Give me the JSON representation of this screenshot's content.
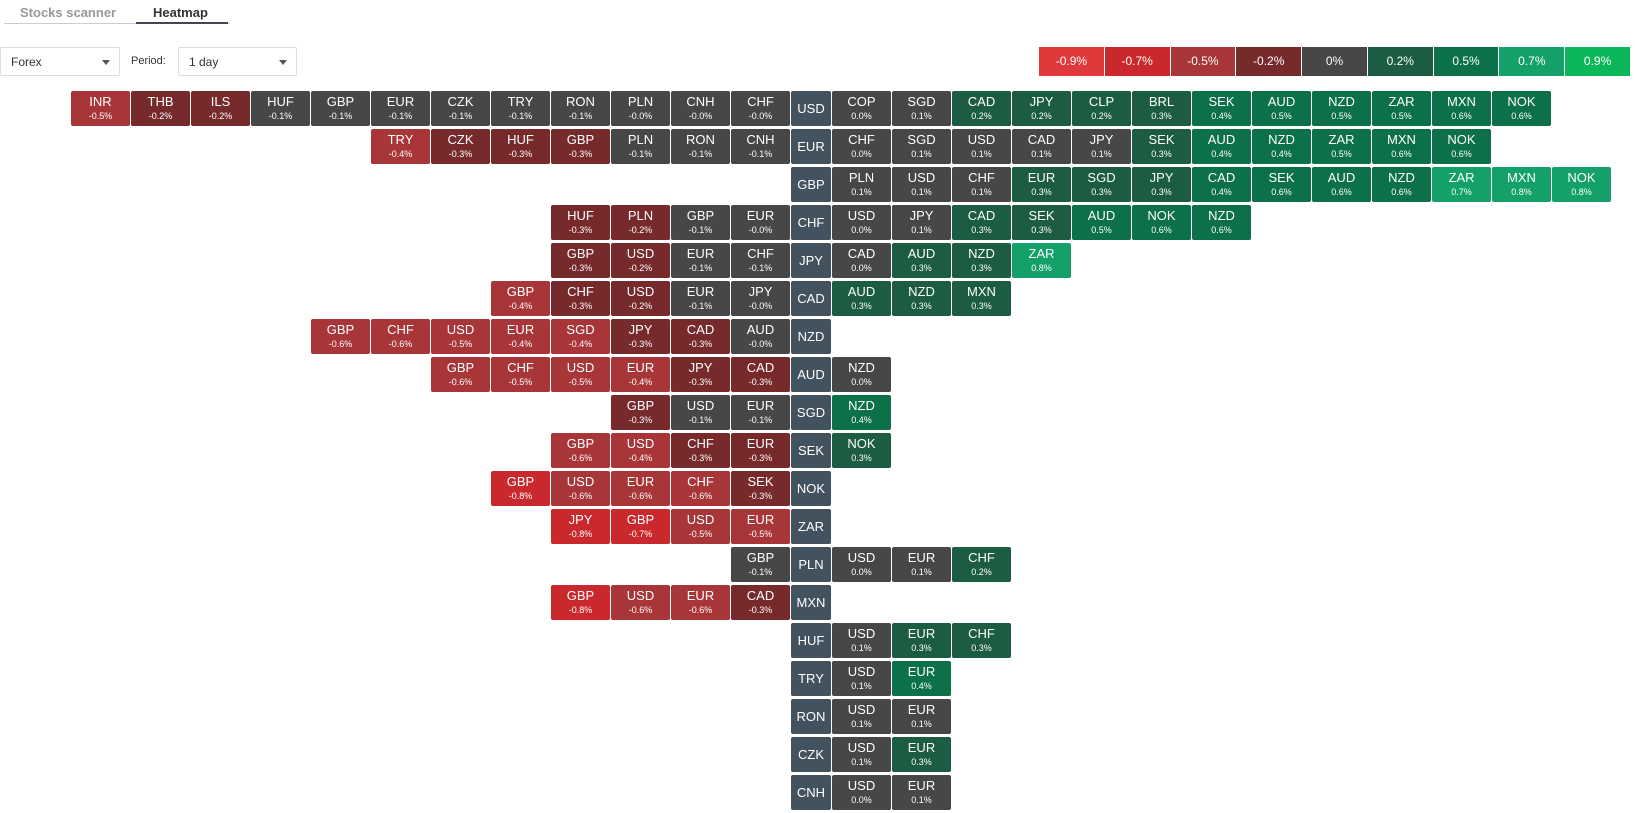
{
  "header": {
    "tabs": [
      "Stocks scanner",
      "Heatmap"
    ]
  },
  "filters": {
    "market": "Forex",
    "period_label": "Period:",
    "period": "1 day"
  },
  "legend": [
    {
      "value": -0.9,
      "label": "-0.9%",
      "color": "#e0393b"
    },
    {
      "value": -0.7,
      "label": "-0.7%",
      "color": "#c9292c"
    },
    {
      "value": -0.5,
      "label": "-0.5%",
      "color": "#a83639"
    },
    {
      "value": -0.2,
      "label": "-0.2%",
      "color": "#772a2c"
    },
    {
      "value": 0,
      "label": "0%",
      "color": "#474747"
    },
    {
      "value": 0.2,
      "label": "0.2%",
      "color": "#1c5c43"
    },
    {
      "value": 0.5,
      "label": "0.5%",
      "color": "#0c7048"
    },
    {
      "value": 0.7,
      "label": "0.7%",
      "color": "#14a069"
    },
    {
      "value": 0.9,
      "label": "0.9%",
      "color": "#0cb75a"
    }
  ],
  "rows": [
    {
      "base": "USD",
      "left": [
        [
          "INR",
          -0.5,
          "-0.5%"
        ],
        [
          "THB",
          -0.2,
          "-0.2%"
        ],
        [
          "ILS",
          -0.2,
          "-0.2%"
        ],
        [
          "HUF",
          -0.1,
          "-0.1%"
        ],
        [
          "GBP",
          -0.1,
          "-0.1%"
        ],
        [
          "EUR",
          -0.1,
          "-0.1%"
        ],
        [
          "CZK",
          -0.1,
          "-0.1%"
        ],
        [
          "TRY",
          -0.1,
          "-0.1%"
        ],
        [
          "RON",
          -0.1,
          "-0.1%"
        ],
        [
          "PLN",
          0,
          "-0.0%"
        ],
        [
          "CNH",
          0,
          "-0.0%"
        ],
        [
          "CHF",
          0,
          "-0.0%"
        ]
      ],
      "right": [
        [
          "COP",
          0,
          "0.0%"
        ],
        [
          "SGD",
          0.1,
          "0.1%"
        ],
        [
          "CAD",
          0.2,
          "0.2%"
        ],
        [
          "JPY",
          0.2,
          "0.2%"
        ],
        [
          "CLP",
          0.2,
          "0.2%"
        ],
        [
          "BRL",
          0.3,
          "0.3%"
        ],
        [
          "SEK",
          0.4,
          "0.4%"
        ],
        [
          "AUD",
          0.5,
          "0.5%"
        ],
        [
          "NZD",
          0.5,
          "0.5%"
        ],
        [
          "ZAR",
          0.5,
          "0.5%"
        ],
        [
          "MXN",
          0.6,
          "0.6%"
        ],
        [
          "NOK",
          0.6,
          "0.6%"
        ]
      ]
    },
    {
      "base": "EUR",
      "left": [
        [
          "TRY",
          -0.4,
          "-0.4%"
        ],
        [
          "CZK",
          -0.3,
          "-0.3%"
        ],
        [
          "HUF",
          -0.3,
          "-0.3%"
        ],
        [
          "GBP",
          -0.3,
          "-0.3%"
        ],
        [
          "PLN",
          -0.1,
          "-0.1%"
        ],
        [
          "RON",
          -0.1,
          "-0.1%"
        ],
        [
          "CNH",
          -0.1,
          "-0.1%"
        ]
      ],
      "right": [
        [
          "CHF",
          0,
          "0.0%"
        ],
        [
          "SGD",
          0.1,
          "0.1%"
        ],
        [
          "USD",
          0.1,
          "0.1%"
        ],
        [
          "CAD",
          0.1,
          "0.1%"
        ],
        [
          "JPY",
          0.1,
          "0.1%"
        ],
        [
          "SEK",
          0.3,
          "0.3%"
        ],
        [
          "AUD",
          0.4,
          "0.4%"
        ],
        [
          "NZD",
          0.4,
          "0.4%"
        ],
        [
          "ZAR",
          0.5,
          "0.5%"
        ],
        [
          "MXN",
          0.6,
          "0.6%"
        ],
        [
          "NOK",
          0.6,
          "0.6%"
        ]
      ]
    },
    {
      "base": "GBP",
      "left": [],
      "right": [
        [
          "PLN",
          0.1,
          "0.1%"
        ],
        [
          "USD",
          0.1,
          "0.1%"
        ],
        [
          "CHF",
          0.1,
          "0.1%"
        ],
        [
          "EUR",
          0.3,
          "0.3%"
        ],
        [
          "SGD",
          0.3,
          "0.3%"
        ],
        [
          "JPY",
          0.3,
          "0.3%"
        ],
        [
          "CAD",
          0.4,
          "0.4%"
        ],
        [
          "SEK",
          0.6,
          "0.6%"
        ],
        [
          "AUD",
          0.6,
          "0.6%"
        ],
        [
          "NZD",
          0.6,
          "0.6%"
        ],
        [
          "ZAR",
          0.7,
          "0.7%"
        ],
        [
          "MXN",
          0.8,
          "0.8%"
        ],
        [
          "NOK",
          0.8,
          "0.8%"
        ]
      ]
    },
    {
      "base": "CHF",
      "left": [
        [
          "HUF",
          -0.3,
          "-0.3%"
        ],
        [
          "PLN",
          -0.2,
          "-0.2%"
        ],
        [
          "GBP",
          -0.1,
          "-0.1%"
        ],
        [
          "EUR",
          0,
          "-0.0%"
        ]
      ],
      "right": [
        [
          "USD",
          0,
          "0.0%"
        ],
        [
          "JPY",
          0.1,
          "0.1%"
        ],
        [
          "CAD",
          0.3,
          "0.3%"
        ],
        [
          "SEK",
          0.3,
          "0.3%"
        ],
        [
          "AUD",
          0.5,
          "0.5%"
        ],
        [
          "NOK",
          0.6,
          "0.6%"
        ],
        [
          "NZD",
          0.6,
          "0.6%"
        ]
      ]
    },
    {
      "base": "JPY",
      "left": [
        [
          "GBP",
          -0.3,
          "-0.3%"
        ],
        [
          "USD",
          -0.2,
          "-0.2%"
        ],
        [
          "EUR",
          -0.1,
          "-0.1%"
        ],
        [
          "CHF",
          -0.1,
          "-0.1%"
        ]
      ],
      "right": [
        [
          "CAD",
          0,
          "0.0%"
        ],
        [
          "AUD",
          0.3,
          "0.3%"
        ],
        [
          "NZD",
          0.3,
          "0.3%"
        ],
        [
          "ZAR",
          0.8,
          "0.8%"
        ]
      ]
    },
    {
      "base": "CAD",
      "left": [
        [
          "GBP",
          -0.4,
          "-0.4%"
        ],
        [
          "CHF",
          -0.3,
          "-0.3%"
        ],
        [
          "USD",
          -0.2,
          "-0.2%"
        ],
        [
          "EUR",
          -0.1,
          "-0.1%"
        ],
        [
          "JPY",
          0,
          "-0.0%"
        ]
      ],
      "right": [
        [
          "AUD",
          0.3,
          "0.3%"
        ],
        [
          "NZD",
          0.3,
          "0.3%"
        ],
        [
          "MXN",
          0.3,
          "0.3%"
        ]
      ]
    },
    {
      "base": "NZD",
      "left": [
        [
          "GBP",
          -0.6,
          "-0.6%"
        ],
        [
          "CHF",
          -0.6,
          "-0.6%"
        ],
        [
          "USD",
          -0.5,
          "-0.5%"
        ],
        [
          "EUR",
          -0.4,
          "-0.4%"
        ],
        [
          "SGD",
          -0.4,
          "-0.4%"
        ],
        [
          "JPY",
          -0.3,
          "-0.3%"
        ],
        [
          "CAD",
          -0.3,
          "-0.3%"
        ],
        [
          "AUD",
          0,
          "-0.0%"
        ]
      ],
      "right": []
    },
    {
      "base": "AUD",
      "left": [
        [
          "GBP",
          -0.6,
          "-0.6%"
        ],
        [
          "CHF",
          -0.5,
          "-0.5%"
        ],
        [
          "USD",
          -0.5,
          "-0.5%"
        ],
        [
          "EUR",
          -0.4,
          "-0.4%"
        ],
        [
          "JPY",
          -0.3,
          "-0.3%"
        ],
        [
          "CAD",
          -0.3,
          "-0.3%"
        ]
      ],
      "right": [
        [
          "NZD",
          0,
          "0.0%"
        ]
      ]
    },
    {
      "base": "SGD",
      "left": [
        [
          "GBP",
          -0.3,
          "-0.3%"
        ],
        [
          "USD",
          -0.1,
          "-0.1%"
        ],
        [
          "EUR",
          -0.1,
          "-0.1%"
        ]
      ],
      "right": [
        [
          "NZD",
          0.4,
          "0.4%"
        ]
      ]
    },
    {
      "base": "SEK",
      "left": [
        [
          "GBP",
          -0.6,
          "-0.6%"
        ],
        [
          "USD",
          -0.4,
          "-0.4%"
        ],
        [
          "CHF",
          -0.3,
          "-0.3%"
        ],
        [
          "EUR",
          -0.3,
          "-0.3%"
        ]
      ],
      "right": [
        [
          "NOK",
          0.3,
          "0.3%"
        ]
      ]
    },
    {
      "base": "NOK",
      "left": [
        [
          "GBP",
          -0.8,
          "-0.8%"
        ],
        [
          "USD",
          -0.6,
          "-0.6%"
        ],
        [
          "EUR",
          -0.6,
          "-0.6%"
        ],
        [
          "CHF",
          -0.6,
          "-0.6%"
        ],
        [
          "SEK",
          -0.3,
          "-0.3%"
        ]
      ],
      "right": []
    },
    {
      "base": "ZAR",
      "left": [
        [
          "JPY",
          -0.8,
          "-0.8%"
        ],
        [
          "GBP",
          -0.7,
          "-0.7%"
        ],
        [
          "USD",
          -0.5,
          "-0.5%"
        ],
        [
          "EUR",
          -0.5,
          "-0.5%"
        ]
      ],
      "right": []
    },
    {
      "base": "PLN",
      "left": [
        [
          "GBP",
          -0.1,
          "-0.1%"
        ]
      ],
      "right": [
        [
          "USD",
          0,
          "0.0%"
        ],
        [
          "EUR",
          0.1,
          "0.1%"
        ],
        [
          "CHF",
          0.2,
          "0.2%"
        ]
      ]
    },
    {
      "base": "MXN",
      "left": [
        [
          "GBP",
          -0.8,
          "-0.8%"
        ],
        [
          "USD",
          -0.6,
          "-0.6%"
        ],
        [
          "EUR",
          -0.6,
          "-0.6%"
        ],
        [
          "CAD",
          -0.3,
          "-0.3%"
        ]
      ],
      "right": []
    },
    {
      "base": "HUF",
      "left": [],
      "right": [
        [
          "USD",
          0.1,
          "0.1%"
        ],
        [
          "EUR",
          0.3,
          "0.3%"
        ],
        [
          "CHF",
          0.3,
          "0.3%"
        ]
      ]
    },
    {
      "base": "TRY",
      "left": [],
      "right": [
        [
          "USD",
          0.1,
          "0.1%"
        ],
        [
          "EUR",
          0.4,
          "0.4%"
        ]
      ]
    },
    {
      "base": "RON",
      "left": [],
      "right": [
        [
          "USD",
          0.1,
          "0.1%"
        ],
        [
          "EUR",
          0.1,
          "0.1%"
        ]
      ]
    },
    {
      "base": "CZK",
      "left": [],
      "right": [
        [
          "USD",
          0.1,
          "0.1%"
        ],
        [
          "EUR",
          0.3,
          "0.3%"
        ]
      ]
    },
    {
      "base": "CNH",
      "left": [],
      "right": [
        [
          "USD",
          0,
          "0.0%"
        ],
        [
          "EUR",
          0.1,
          "0.1%"
        ]
      ]
    }
  ]
}
